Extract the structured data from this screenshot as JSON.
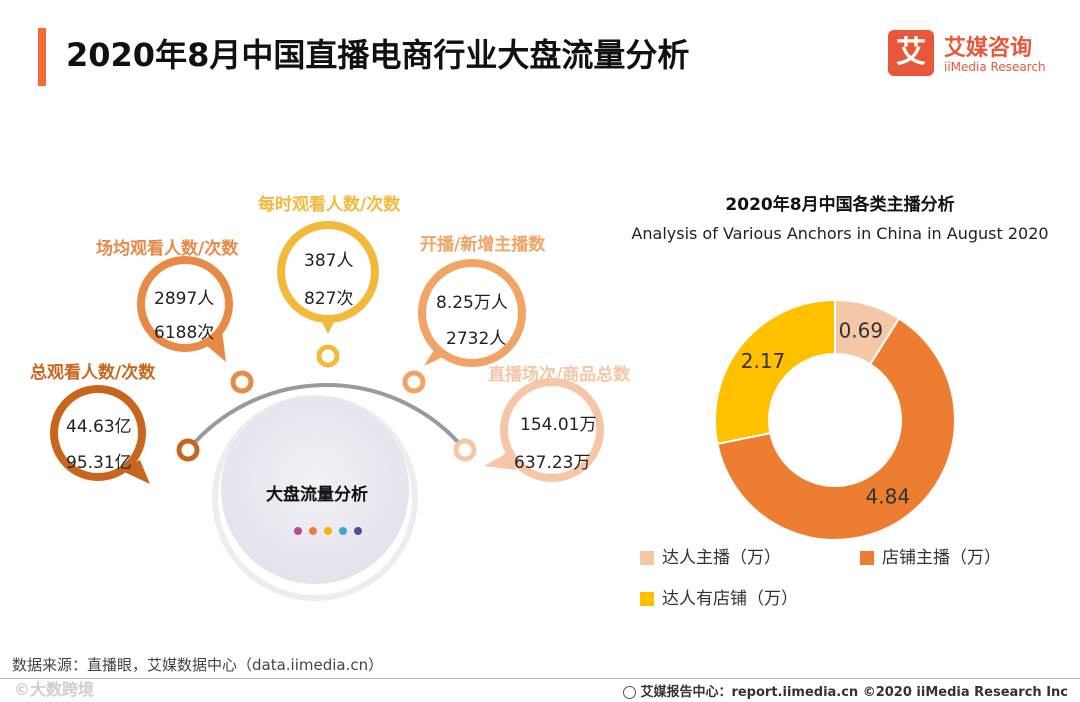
{
  "header": {
    "title": "2020年8月中国直播电商行业大盘流量分析",
    "accent_color": "#f26b3a"
  },
  "logo": {
    "mark": "艾",
    "cn": "艾媒咨询",
    "en": "iiMedia Research",
    "color": "#e8573a"
  },
  "flow": {
    "hub_title": "大盘流量分析",
    "hub_dot_colors": [
      "#b64a9c",
      "#f07a3a",
      "#f5b400",
      "#3fa7c8",
      "#5a4a9c"
    ],
    "metrics": [
      {
        "label": "总观看人数/次数",
        "line1": "44.63亿",
        "line2": "95.31亿",
        "color": "#c8661e"
      },
      {
        "label": "场均观看人数/次数",
        "line1": "2897人",
        "line2": "6188次",
        "color": "#e78a45"
      },
      {
        "label": "每时观看人数/次数",
        "line1": "387人",
        "line2": "827次",
        "color": "#f2b93b"
      },
      {
        "label": "开播/新增主播数",
        "line1": "8.25万人",
        "line2": "2732人",
        "color": "#f0a466"
      },
      {
        "label": "直播场次/商品总数",
        "line1": "154.01万",
        "line2": "637.23万",
        "color": "#f5c7a6"
      }
    ]
  },
  "chart_data": {
    "type": "pie",
    "variant": "donut",
    "title": "2020年8月中国各类主播分析",
    "subtitle": "Analysis of Various Anchors in China in August 2020",
    "categories": [
      "达人主播（万）",
      "店铺主播（万）",
      "达人有店铺（万）"
    ],
    "values": [
      0.69,
      4.84,
      2.17
    ],
    "colors": [
      "#f5c7a6",
      "#ed7d31",
      "#ffc000"
    ],
    "legend_position": "bottom"
  },
  "source": "数据来源：直播眼，艾媒数据中心（data.iimedia.cn）",
  "footer": {
    "text": "艾媒报告中心：report.iimedia.cn   ©2020  iiMedia Research  Inc"
  },
  "watermark": "©大数跨境"
}
